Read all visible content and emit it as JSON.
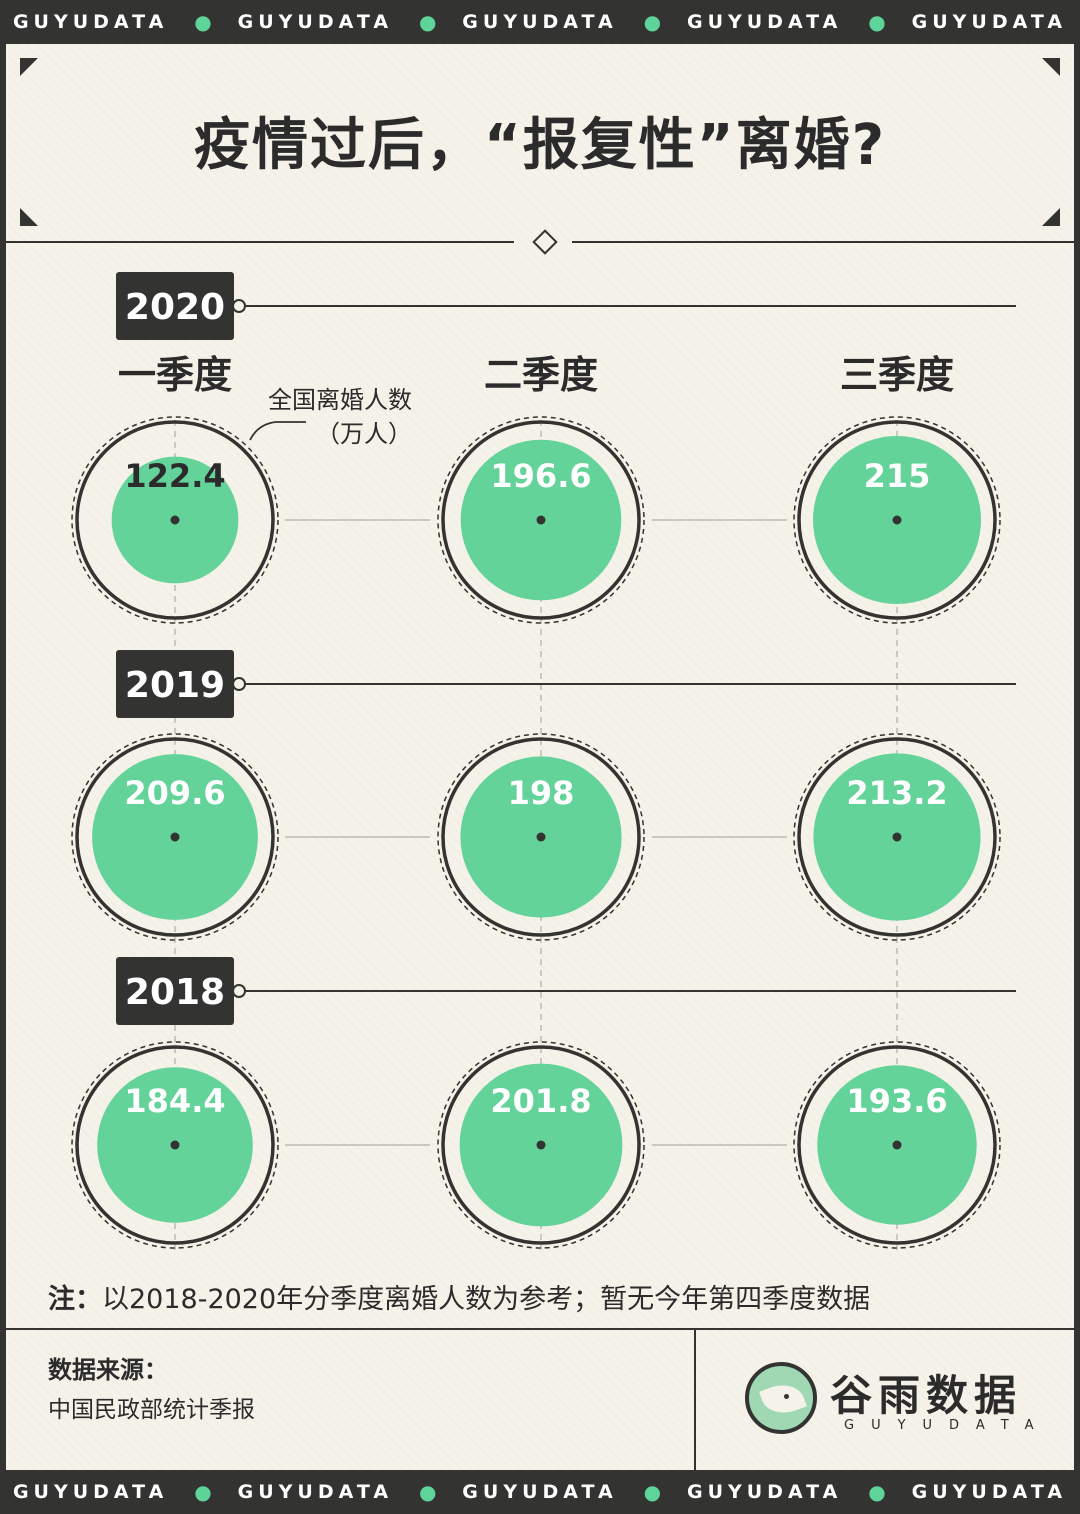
{
  "band_text": "GUYUDATA",
  "title": "疫情过后，“报复性”离婚?",
  "annotation": {
    "line1": "全国离婚人数",
    "line2": "（万人）"
  },
  "note": {
    "label": "注：",
    "text": "以2018-2020年分季度离婚人数为参考；暂无今年第四季度数据"
  },
  "source": {
    "label": "数据来源：",
    "value": "中国民政部统计季报"
  },
  "logo": {
    "name": "谷雨数据",
    "sub": "GUYUDATA"
  },
  "colors": {
    "fill": "#63d39a",
    "dark": "#333331",
    "background": "#f5f2e9"
  },
  "chart_data": {
    "type": "bubble-grid",
    "columns": [
      "一季度",
      "二季度",
      "三季度"
    ],
    "rows": [
      {
        "year": "2020",
        "values": [
          122.4,
          196.6,
          215
        ]
      },
      {
        "year": "2019",
        "values": [
          209.6,
          198,
          213.2
        ]
      },
      {
        "year": "2018",
        "values": [
          184.4,
          201.8,
          193.6
        ]
      }
    ],
    "unit": "万人",
    "max_value": 215
  }
}
